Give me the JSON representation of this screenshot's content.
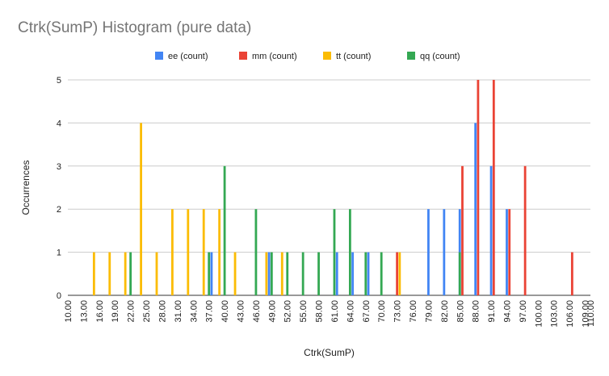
{
  "chart_data": {
    "type": "bar",
    "title": "Ctrk(SumP) Histogram (pure data)",
    "xlabel": "Ctrk(SumP)",
    "ylabel": "Occurrences",
    "xlim": [
      10,
      110
    ],
    "ylim": [
      0,
      5
    ],
    "x_ticks": [
      "10.00",
      "13.00",
      "16.00",
      "19.00",
      "22.00",
      "25.00",
      "28.00",
      "31.00",
      "34.00",
      "37.00",
      "40.00",
      "43.00",
      "46.00",
      "49.00",
      "52.00",
      "55.00",
      "58.00",
      "61.00",
      "64.00",
      "67.00",
      "70.00",
      "73.00",
      "76.00",
      "79.00",
      "82.00",
      "85.00",
      "88.00",
      "91.00",
      "94.00",
      "97.00",
      "100.00",
      "103.00",
      "106.00",
      "109.00",
      "110.00"
    ],
    "y_ticks": [
      "0",
      "1",
      "2",
      "3",
      "4",
      "5"
    ],
    "grid": true,
    "legend_position": "top",
    "series": [
      {
        "name": "ee (count)",
        "color": "#4285f4",
        "points": [
          [
            37.5,
            1
          ],
          [
            48.5,
            1
          ],
          [
            61.5,
            1
          ],
          [
            64.5,
            1
          ],
          [
            67.5,
            1
          ],
          [
            79,
            2
          ],
          [
            82,
            2
          ],
          [
            85,
            2
          ],
          [
            88,
            4
          ],
          [
            91,
            3
          ],
          [
            94,
            2
          ]
        ]
      },
      {
        "name": "mm (count)",
        "color": "#ea4335",
        "points": [
          [
            73,
            1
          ],
          [
            85.5,
            3
          ],
          [
            88.5,
            5
          ],
          [
            91.5,
            5
          ],
          [
            94.5,
            2
          ],
          [
            97.5,
            3
          ],
          [
            106.5,
            1
          ]
        ]
      },
      {
        "name": "tt (count)",
        "color": "#fbbc04",
        "points": [
          [
            15,
            1
          ],
          [
            18,
            1
          ],
          [
            21,
            1
          ],
          [
            24,
            4
          ],
          [
            27,
            1
          ],
          [
            30,
            2
          ],
          [
            33,
            2
          ],
          [
            36,
            2
          ],
          [
            39,
            2
          ],
          [
            42,
            1
          ],
          [
            48,
            1
          ],
          [
            51,
            1
          ],
          [
            73.5,
            1
          ]
        ]
      },
      {
        "name": "qq (count)",
        "color": "#34a853",
        "points": [
          [
            22,
            1
          ],
          [
            37,
            1
          ],
          [
            40,
            3
          ],
          [
            46,
            2
          ],
          [
            49,
            1
          ],
          [
            52,
            1
          ],
          [
            55,
            1
          ],
          [
            58,
            1
          ],
          [
            61,
            2
          ],
          [
            64,
            2
          ],
          [
            67,
            1
          ],
          [
            70,
            1
          ],
          [
            85,
            1
          ]
        ]
      }
    ]
  }
}
